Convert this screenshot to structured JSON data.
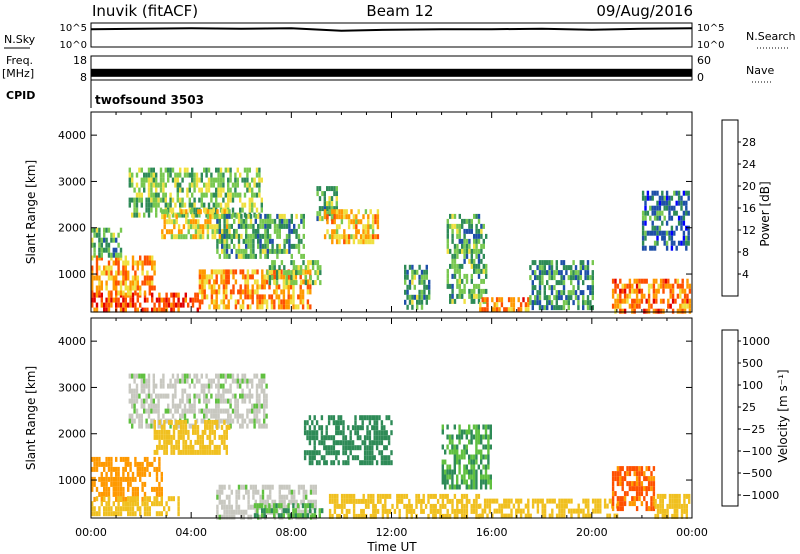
{
  "header": {
    "station": "Inuvik (fitACF)",
    "beam": "Beam 12",
    "date": "09/Aug/2016"
  },
  "nsky_panel": {
    "left_label": "N.Sky",
    "right_label": "N.Search",
    "left_ticks": [
      "10^5",
      "10^0"
    ],
    "right_ticks": [
      "10^5",
      "10^0"
    ]
  },
  "freq_panel": {
    "left_label_1": "Freq.",
    "left_label_2": "[MHz]",
    "right_label": "Nave",
    "left_ticks": [
      "18",
      "8"
    ],
    "right_ticks": [
      "60",
      "0"
    ]
  },
  "cpid_panel": {
    "label": "CPID",
    "program": "twofsound 3503"
  },
  "power_panel": {
    "ylabel": "Slant Range [km]",
    "yticks": [
      "4000",
      "3000",
      "2000",
      "1000"
    ],
    "colorbar_label": "Power [dB]",
    "colorbar_ticks": [
      "28",
      "24",
      "20",
      "16",
      "12",
      "8",
      "4"
    ]
  },
  "velocity_panel": {
    "ylabel": "Slant Range [km]",
    "yticks": [
      "4000",
      "3000",
      "2000",
      "1000"
    ],
    "colorbar_label": "Velocity [m s⁻¹]",
    "colorbar_ticks": [
      "1000",
      "500",
      "100",
      "25",
      "−25",
      "−100",
      "−500",
      "−1000"
    ]
  },
  "xaxis": {
    "label": "Time UT",
    "ticks": [
      "00:00",
      "04:00",
      "08:00",
      "12:00",
      "16:00",
      "20:00",
      "00:00"
    ]
  },
  "colors": {
    "power_scale": [
      "#0000ff",
      "#1e4fa8",
      "#2e8b57",
      "#78c850",
      "#f0e040",
      "#ff9900",
      "#ff5000",
      "#e00000"
    ],
    "velocity_scale": [
      "#1040c0",
      "#2e8b57",
      "#60c040",
      "#c8c8c0",
      "#f0c020",
      "#ff9900",
      "#ff5000",
      "#e00000"
    ]
  },
  "chart_data": [
    {
      "type": "line",
      "panel": "N.Sky / N.Search",
      "x": [
        0,
        2,
        4,
        6,
        8,
        10,
        12,
        14,
        16,
        18,
        20,
        22,
        24
      ],
      "y": [
        3.7,
        3.8,
        3.9,
        3.8,
        3.9,
        3.4,
        3.6,
        3.7,
        3.7,
        3.8,
        3.6,
        3.8,
        3.9
      ],
      "ylim": [
        0,
        5
      ],
      "xlim": [
        0,
        24
      ]
    },
    {
      "type": "line",
      "panel": "Freq / Nave",
      "x": [
        0,
        24
      ],
      "y": [
        11,
        11
      ],
      "ylim": [
        8,
        18
      ],
      "xlim": [
        0,
        24
      ]
    },
    {
      "type": "heatmap",
      "panel": "Power",
      "xlim": [
        0,
        24
      ],
      "ylim": [
        180,
        4500
      ],
      "clim": [
        0,
        32
      ],
      "clusters": [
        {
          "t0": 0.0,
          "t1": 4.3,
          "r0": 200,
          "r1": 600,
          "v": 26
        },
        {
          "t0": 0.0,
          "t1": 2.5,
          "r0": 600,
          "r1": 1400,
          "v": 22
        },
        {
          "t0": 0.0,
          "t1": 1.2,
          "r0": 1400,
          "r1": 2000,
          "v": 12
        },
        {
          "t0": 1.5,
          "t1": 6.8,
          "r0": 2300,
          "r1": 3300,
          "v": 14
        },
        {
          "t0": 2.8,
          "t1": 5.5,
          "r0": 1800,
          "r1": 2400,
          "v": 18
        },
        {
          "t0": 4.3,
          "t1": 8.8,
          "r0": 250,
          "r1": 1100,
          "v": 22
        },
        {
          "t0": 5.0,
          "t1": 8.5,
          "r0": 1400,
          "r1": 2300,
          "v": 12
        },
        {
          "t0": 7.0,
          "t1": 9.2,
          "r0": 800,
          "r1": 1300,
          "v": 14
        },
        {
          "t0": 9.0,
          "t1": 9.8,
          "r0": 2200,
          "r1": 2900,
          "v": 12
        },
        {
          "t0": 9.3,
          "t1": 11.5,
          "r0": 1700,
          "r1": 2400,
          "v": 20
        },
        {
          "t0": 12.5,
          "t1": 13.5,
          "r0": 300,
          "r1": 1200,
          "v": 12
        },
        {
          "t0": 14.2,
          "t1": 15.8,
          "r0": 400,
          "r1": 2300,
          "v": 12
        },
        {
          "t0": 15.5,
          "t1": 17.5,
          "r0": 220,
          "r1": 500,
          "v": 24
        },
        {
          "t0": 17.5,
          "t1": 20.0,
          "r0": 300,
          "r1": 1300,
          "v": 10
        },
        {
          "t0": 20.8,
          "t1": 23.9,
          "r0": 250,
          "r1": 900,
          "v": 24
        },
        {
          "t0": 22.0,
          "t1": 23.9,
          "r0": 1600,
          "r1": 2800,
          "v": 8
        }
      ]
    },
    {
      "type": "heatmap",
      "panel": "Velocity",
      "xlim": [
        0,
        24
      ],
      "ylim": [
        180,
        4500
      ],
      "clim": [
        -1000,
        1000
      ],
      "clusters": [
        {
          "t0": 0.0,
          "t1": 2.8,
          "r0": 600,
          "r1": 1500,
          "v": -300
        },
        {
          "t0": 0.0,
          "t1": 3.5,
          "r0": 250,
          "r1": 650,
          "v": -80
        },
        {
          "t0": 1.5,
          "t1": 7.0,
          "r0": 2200,
          "r1": 3300,
          "v": 10
        },
        {
          "t0": 2.5,
          "t1": 5.5,
          "r0": 1600,
          "r1": 2300,
          "v": -60
        },
        {
          "t0": 5.0,
          "t1": 9.0,
          "r0": 250,
          "r1": 900,
          "v": 5
        },
        {
          "t0": 6.5,
          "t1": 9.2,
          "r0": 200,
          "r1": 500,
          "v": 80
        },
        {
          "t0": 8.5,
          "t1": 12.0,
          "r0": 1400,
          "r1": 2400,
          "v": 300
        },
        {
          "t0": 9.5,
          "t1": 15.5,
          "r0": 200,
          "r1": 700,
          "v": -60
        },
        {
          "t0": 14.0,
          "t1": 16.0,
          "r0": 800,
          "r1": 2200,
          "v": 100
        },
        {
          "t0": 15.5,
          "t1": 21.0,
          "r0": 200,
          "r1": 600,
          "v": -60
        },
        {
          "t0": 20.8,
          "t1": 22.5,
          "r0": 400,
          "r1": 1300,
          "v": -600
        },
        {
          "t0": 22.5,
          "t1": 23.9,
          "r0": 200,
          "r1": 700,
          "v": -80
        }
      ]
    }
  ]
}
